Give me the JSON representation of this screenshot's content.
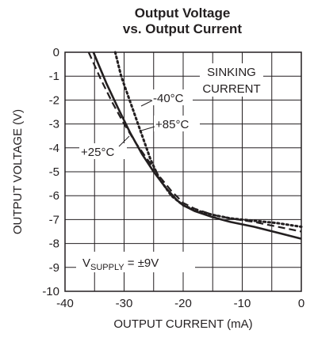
{
  "chart_data": {
    "type": "line",
    "title_line1": "Output Voltage",
    "title_line2": "vs. Output Current",
    "xlabel": "OUTPUT CURRENT (mA)",
    "ylabel": "OUTPUT VOLTAGE (V)",
    "xlim": [
      -40,
      0
    ],
    "ylim": [
      -10,
      0
    ],
    "x_ticks": [
      "-40",
      "-30",
      "-20",
      "-10",
      "0"
    ],
    "y_ticks": [
      "0",
      "-1",
      "-2",
      "-3",
      "-4",
      "-5",
      "-6",
      "-7",
      "-8",
      "-9",
      "-10"
    ],
    "grid": true,
    "annotation_sinking_line1": "SINKING",
    "annotation_sinking_line2": "CURRENT",
    "supply_label_prefix": "V",
    "supply_label_sub": "SUPPLY",
    "supply_label_suffix": " = ±9V",
    "series": [
      {
        "name": "-40°C",
        "style": "dotted",
        "color": "#231f20",
        "x": [
          -31.5,
          -30.5,
          -29.5,
          -28.5,
          -27.5,
          -26.5,
          -25.5,
          -24,
          -22,
          -20,
          -18,
          -15,
          -12,
          -8,
          -4,
          0
        ],
        "y": [
          0,
          -1,
          -1.7,
          -2.4,
          -3.1,
          -3.8,
          -4.5,
          -5.3,
          -6.0,
          -6.4,
          -6.6,
          -6.8,
          -6.95,
          -7.05,
          -7.15,
          -7.3
        ]
      },
      {
        "name": "+85°C",
        "style": "dashed",
        "color": "#231f20",
        "x": [
          -36,
          -34,
          -32,
          -30,
          -28,
          -26,
          -24,
          -22,
          -20,
          -18,
          -15,
          -12,
          -8,
          -4,
          0
        ],
        "y": [
          0,
          -1.1,
          -2.1,
          -3.0,
          -3.8,
          -4.5,
          -5.2,
          -5.8,
          -6.3,
          -6.55,
          -6.8,
          -6.95,
          -7.1,
          -7.3,
          -7.5
        ]
      },
      {
        "name": "+25°C",
        "style": "solid",
        "color": "#231f20",
        "x": [
          -35.2,
          -33,
          -31,
          -29,
          -27,
          -25,
          -23,
          -21,
          -20,
          -18,
          -15,
          -12,
          -8,
          -4,
          0
        ],
        "y": [
          0,
          -1.3,
          -2.35,
          -3.35,
          -4.25,
          -5.0,
          -5.65,
          -6.2,
          -6.4,
          -6.65,
          -6.9,
          -7.1,
          -7.3,
          -7.55,
          -7.8
        ]
      }
    ]
  }
}
